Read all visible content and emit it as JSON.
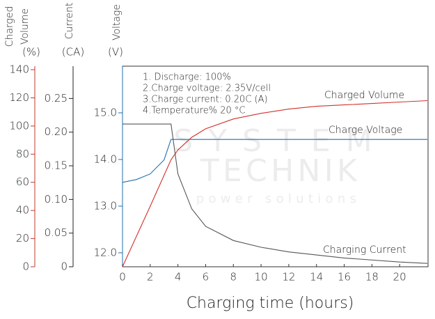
{
  "chart_data": {
    "type": "line",
    "xlabel": "Charging time (hours)",
    "xlim": [
      0,
      22.05
    ],
    "xticks": [
      0,
      2,
      4,
      6,
      8,
      10,
      12,
      14,
      16,
      18,
      20
    ],
    "ylabel_lines": [
      "Charged",
      "Volume"
    ],
    "yunit": "(%)",
    "ylim": [
      0,
      142.5
    ],
    "yticks": [
      0,
      20,
      40,
      60,
      80,
      100,
      120,
      140
    ],
    "ycolor": "#c0392b",
    "y2label": "Current",
    "y2unit": "(CA)",
    "y2lim": [
      0,
      0.298
    ],
    "y2ticks": [
      0,
      {
        "value": 0.05,
        "label": "0.05"
      },
      {
        "value": 0.1,
        "label": "0.10"
      },
      {
        "value": 0.15,
        "label": "0.15"
      },
      {
        "value": 0.2,
        "label": "0.20"
      },
      {
        "value": 0.25,
        "label": "0.25"
      }
    ],
    "y2color": "#222222",
    "y3label": "Voltage",
    "y3unit": "(V)",
    "y3lim": [
      11.7,
      16.0
    ],
    "y3ticks": [
      {
        "value": 12,
        "label": "12.0"
      },
      {
        "value": 13,
        "label": "13.0"
      },
      {
        "value": 14,
        "label": "14.0"
      },
      {
        "value": 15,
        "label": "15.0"
      }
    ],
    "y3color": "#1f6fb2",
    "annotations": [
      "1. Discharge: 100%",
      "2.Charge voltage: 2.35V/cell",
      "3.Charge current: 0.20C (A)",
      "4.Temperature% 20 °C"
    ],
    "watermark": [
      "SYSTEM",
      "TECHNIK",
      "power solutions"
    ],
    "series": [
      {
        "name": "Charged Volume",
        "color": "#d0302a",
        "axis": "y",
        "x": [
          0,
          2,
          3.5,
          4,
          5,
          6,
          8,
          10,
          12,
          14,
          16,
          18,
          20,
          22
        ],
        "values": [
          0,
          43,
          76,
          83,
          92,
          98,
          105,
          109,
          112,
          114,
          115,
          116,
          117,
          118
        ]
      },
      {
        "name": "Charge Voltage",
        "color": "#1f6fb2",
        "axis": "y3",
        "x": [
          0,
          1,
          2,
          3,
          3.5,
          22
        ],
        "values": [
          13.51,
          13.57,
          13.69,
          13.99,
          14.43,
          14.43
        ]
      },
      {
        "name": "Charging Current",
        "color": "#555555",
        "axis": "y2",
        "x": [
          0,
          3.5,
          4,
          5,
          6,
          8,
          10,
          12,
          16,
          20,
          22
        ],
        "values": [
          0.212,
          0.212,
          0.138,
          0.086,
          0.06,
          0.039,
          0.029,
          0.022,
          0.013,
          0.007,
          0.005
        ]
      }
    ]
  }
}
